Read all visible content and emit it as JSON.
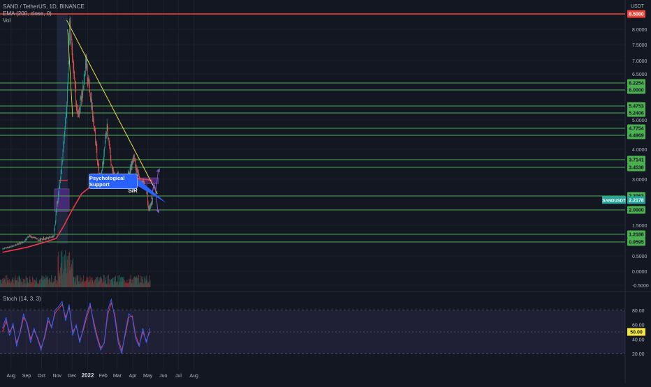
{
  "header": {
    "symbol_line": "SAND / TetherUS, 1D, BINANCE",
    "ema_line": "EMA (200, close, 0)",
    "vol_line": "Vol",
    "currency": "USDT"
  },
  "stoch": {
    "label": "Stoch (14, 3, 3)",
    "ticks": [
      80.0,
      60.0,
      40.0,
      20.0
    ],
    "highlight_value": "50.00",
    "ylim": [
      0,
      100
    ],
    "band": [
      20,
      80
    ]
  },
  "annotations": {
    "callout": "Psychological Support",
    "sr_label": "S/R"
  },
  "colors": {
    "background": "#131722",
    "up": "#26a69a",
    "down": "#ef5350",
    "ema": "#f23645",
    "level_line": "#5fa84f",
    "resistance_top": "#f44336",
    "trendline": "#e6e24a",
    "zone": "#6b2fa8",
    "callout": "#2962ff",
    "stoch_k": "#2962ff",
    "stoch_d": "#f23645",
    "current_price": "#26a69a"
  },
  "chart_data": [
    {
      "type": "candlestick",
      "title": "SAND / TetherUS, 1D, BINANCE",
      "xlabel": "",
      "ylabel": "USDT",
      "x_ticks": [
        "Aug",
        "Sep",
        "Oct",
        "Nov",
        "Dec",
        "2022",
        "Feb",
        "Mar",
        "Apr",
        "May",
        "Jun",
        "Jul",
        "Aug"
      ],
      "y_ticks": [
        "8.0000",
        "7.5000",
        "7.0000",
        "6.5000",
        "5.0000",
        "4.0000",
        "3.0000",
        "1.5000",
        "0.5000",
        "0.0000",
        "-0.5000"
      ],
      "ylim": [
        -0.6,
        8.7
      ],
      "price_levels": [
        {
          "value": "8.5000",
          "color": "#f44336"
        },
        {
          "value": "6.2254",
          "color": "#4caf50"
        },
        {
          "value": "6.0000",
          "color": "#4caf50"
        },
        {
          "value": "5.4753",
          "color": "#4caf50"
        },
        {
          "value": "5.2406",
          "color": "#4caf50"
        },
        {
          "value": "4.7754",
          "color": "#4caf50"
        },
        {
          "value": "4.4969",
          "color": "#4caf50"
        },
        {
          "value": "3.7141",
          "color": "#4caf50"
        },
        {
          "value": "3.4538",
          "color": "#4caf50"
        },
        {
          "value": "2.3063",
          "color": "#4caf50"
        },
        {
          "value": "2.0000",
          "color": "#4caf50"
        },
        {
          "value": "1.2188",
          "color": "#4caf50"
        },
        {
          "value": "0.9595",
          "color": "#4caf50"
        }
      ],
      "current_price": {
        "symbol": "SANDUSDT",
        "value": "2.2178"
      },
      "price_path": {
        "x": [
          "2021-07-15",
          "2021-07-25",
          "2021-08-05",
          "2021-08-15",
          "2021-08-25",
          "2021-09-05",
          "2021-09-15",
          "2021-09-25",
          "2021-10-05",
          "2021-10-15",
          "2021-10-25",
          "2021-10-30",
          "2021-11-03",
          "2021-11-06",
          "2021-11-10",
          "2021-11-15",
          "2021-11-20",
          "2021-11-23",
          "2021-11-25",
          "2021-11-28",
          "2021-12-02",
          "2021-12-06",
          "2021-12-10",
          "2021-12-15",
          "2021-12-20",
          "2021-12-25",
          "2021-12-28",
          "2022-01-02",
          "2022-01-06",
          "2022-01-10",
          "2022-01-15",
          "2022-01-20",
          "2022-01-25",
          "2022-01-30",
          "2022-02-04",
          "2022-02-08",
          "2022-02-12",
          "2022-02-18",
          "2022-02-24",
          "2022-03-01",
          "2022-03-07",
          "2022-03-13",
          "2022-03-20",
          "2022-03-27",
          "2022-04-01",
          "2022-04-05",
          "2022-04-10",
          "2022-04-15",
          "2022-04-20",
          "2022-04-25",
          "2022-04-29",
          "2022-05-02",
          "2022-05-06",
          "2022-05-10"
        ],
        "close": [
          0.72,
          0.78,
          0.82,
          0.9,
          0.95,
          1.15,
          1.1,
          1.02,
          1.08,
          1.1,
          1.15,
          2.0,
          2.4,
          2.9,
          3.6,
          4.6,
          5.5,
          7.0,
          8.2,
          7.6,
          7.1,
          6.2,
          5.2,
          5.3,
          5.9,
          6.4,
          6.9,
          6.3,
          5.7,
          5.2,
          4.5,
          3.6,
          3.0,
          3.5,
          4.3,
          4.75,
          4.2,
          3.4,
          2.95,
          3.15,
          3.0,
          2.75,
          3.05,
          3.4,
          3.75,
          3.55,
          3.2,
          2.95,
          2.85,
          2.75,
          2.4,
          1.95,
          2.1,
          2.22
        ]
      },
      "ema_200": {
        "x": [
          "2021-07-15",
          "2021-09-01",
          "2021-10-01",
          "2021-10-30",
          "2021-11-15",
          "2021-12-01",
          "2021-12-20",
          "2022-01-10",
          "2022-02-01",
          "2022-03-01",
          "2022-04-01",
          "2022-05-10"
        ],
        "values": [
          0.62,
          0.78,
          0.92,
          1.08,
          1.5,
          2.0,
          2.4,
          2.75,
          3.05,
          3.1,
          3.05,
          2.95
        ]
      }
    },
    {
      "type": "line",
      "title": "Stoch (14, 3, 3)",
      "ylim": [
        0,
        100
      ],
      "series": [
        {
          "x": [
            "2021-07-15",
            "2021-07-22",
            "2021-07-29",
            "2021-08-05",
            "2021-08-12",
            "2021-08-19",
            "2021-08-26",
            "2021-09-02",
            "2021-09-09",
            "2021-09-16",
            "2021-09-23",
            "2021-09-30",
            "2021-10-07",
            "2021-10-14",
            "2021-10-21",
            "2021-10-28",
            "2021-11-04",
            "2021-11-11",
            "2021-11-18",
            "2021-11-25",
            "2021-12-02",
            "2021-12-09",
            "2021-12-16",
            "2021-12-23",
            "2021-12-30",
            "2022-01-06",
            "2022-01-13",
            "2022-01-20",
            "2022-01-27",
            "2022-02-03",
            "2022-02-10",
            "2022-02-17",
            "2022-02-24",
            "2022-03-03",
            "2022-03-10",
            "2022-03-17",
            "2022-03-24",
            "2022-03-31",
            "2022-04-07",
            "2022-04-14",
            "2022-04-21",
            "2022-04-28",
            "2022-05-05"
          ],
          "values": [
            55,
            70,
            45,
            62,
            30,
            50,
            75,
            60,
            35,
            55,
            40,
            25,
            45,
            70,
            55,
            80,
            85,
            92,
            65,
            88,
            45,
            60,
            35,
            55,
            75,
            90,
            60,
            40,
            25,
            35,
            80,
            95,
            70,
            35,
            20,
            50,
            75,
            70,
            40,
            30,
            55,
            35,
            55
          ]
        },
        {
          "x": [
            "2021-07-15",
            "2021-07-22",
            "2021-07-29",
            "2021-08-05",
            "2021-08-12",
            "2021-08-19",
            "2021-08-26",
            "2021-09-02",
            "2021-09-09",
            "2021-09-16",
            "2021-09-23",
            "2021-09-30",
            "2021-10-07",
            "2021-10-14",
            "2021-10-21",
            "2021-10-28",
            "2021-11-04",
            "2021-11-11",
            "2021-11-18",
            "2021-11-25",
            "2021-12-02",
            "2021-12-09",
            "2021-12-16",
            "2021-12-23",
            "2021-12-30",
            "2022-01-06",
            "2022-01-13",
            "2022-01-20",
            "2022-01-27",
            "2022-02-03",
            "2022-02-10",
            "2022-02-17",
            "2022-02-24",
            "2022-03-03",
            "2022-03-10",
            "2022-03-17",
            "2022-03-24",
            "2022-03-31",
            "2022-04-07",
            "2022-04-14",
            "2022-04-21",
            "2022-04-28",
            "2022-05-05"
          ],
          "values": [
            50,
            65,
            50,
            58,
            35,
            48,
            70,
            62,
            40,
            52,
            42,
            28,
            42,
            65,
            58,
            76,
            82,
            88,
            70,
            84,
            50,
            58,
            38,
            52,
            70,
            86,
            64,
            44,
            28,
            34,
            74,
            90,
            74,
            40,
            24,
            46,
            70,
            72,
            44,
            32,
            50,
            38,
            50
          ]
        }
      ]
    }
  ]
}
